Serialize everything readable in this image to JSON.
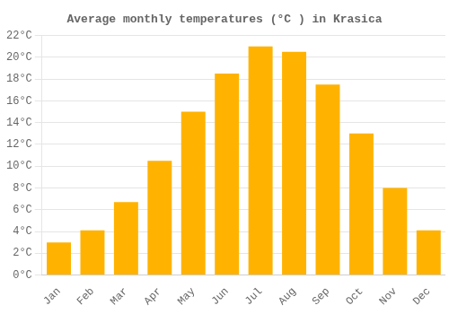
{
  "chart_data": {
    "type": "bar",
    "title": "Average monthly temperatures (°C ) in Krasica",
    "categories": [
      "Jan",
      "Feb",
      "Mar",
      "Apr",
      "May",
      "Jun",
      "Jul",
      "Aug",
      "Sep",
      "Oct",
      "Nov",
      "Dec"
    ],
    "values": [
      3.0,
      4.1,
      6.7,
      10.5,
      15.0,
      18.5,
      21.0,
      20.5,
      17.5,
      13.0,
      8.0,
      4.1
    ],
    "color": "#FFB300",
    "ylim": [
      0,
      22
    ],
    "yticks": [
      {
        "value": 0,
        "label": "0°C"
      },
      {
        "value": 2,
        "label": "2°C"
      },
      {
        "value": 4,
        "label": "4°C"
      },
      {
        "value": 6,
        "label": "6°C"
      },
      {
        "value": 8,
        "label": "8°C"
      },
      {
        "value": 10,
        "label": "10°C"
      },
      {
        "value": 12,
        "label": "12°C"
      },
      {
        "value": 14,
        "label": "14°C"
      },
      {
        "value": 16,
        "label": "16°C"
      },
      {
        "value": 18,
        "label": "18°C"
      },
      {
        "value": 20,
        "label": "20°C"
      },
      {
        "value": 22,
        "label": "22°C"
      }
    ],
    "grid": true
  }
}
